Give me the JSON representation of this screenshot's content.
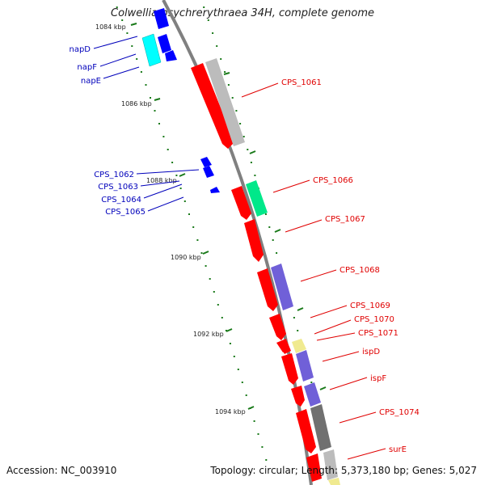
{
  "title": "Colwellia psychrerythraea 34H, complete genome",
  "footer": {
    "accession": "Accession: NC_003910",
    "summary": "Topology: circular; Length: 5,373,180 bp; Genes: 5,027"
  },
  "ticks": [
    {
      "label": "1084 kbp",
      "key": "k1084"
    },
    {
      "label": "1086 kbp",
      "key": "k1086"
    },
    {
      "label": "1088 kbp",
      "key": "k1088"
    },
    {
      "label": "1090 kbp",
      "key": "k1090"
    },
    {
      "label": "1092 kbp",
      "key": "k1092"
    },
    {
      "label": "1094 kbp",
      "key": "k1094"
    }
  ],
  "genes_left": [
    "napD",
    "napF",
    "napE",
    "CPS_1062",
    "CPS_1063",
    "CPS_1064",
    "CPS_1065"
  ],
  "genes_right": [
    "CPS_1061",
    "CPS_1066",
    "CPS_1067",
    "CPS_1068",
    "CPS_1069",
    "CPS_1070",
    "CPS_1071",
    "ispD",
    "ispF",
    "CPS_1074",
    "surE"
  ],
  "colors": {
    "backbone": "#808080",
    "cds_red": "#ff0000",
    "blue": "#0000ff",
    "cyan": "#00ffff",
    "teal": "#00e88a",
    "purple": "#7060d8",
    "gray_light": "#bcbcbc",
    "gray_dark": "#707070",
    "yellow": "#f0ea90",
    "tick_green": "#1a7a1a"
  }
}
